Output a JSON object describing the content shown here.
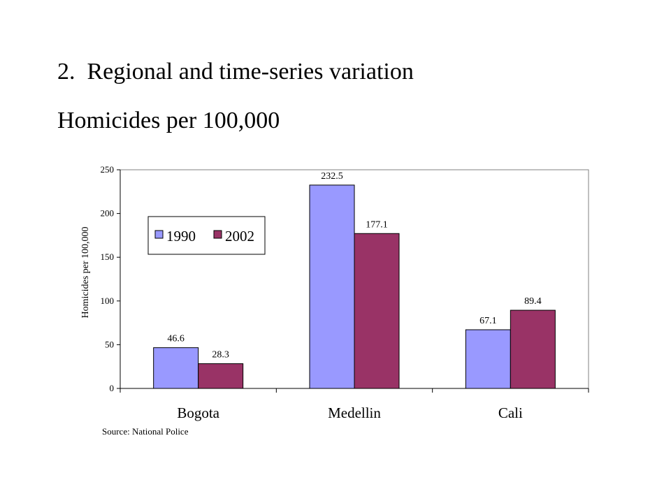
{
  "slide": {
    "title": "2.  Regional and time-series variation",
    "subtitle": "Homicides per 100,000"
  },
  "chart_data": {
    "type": "bar",
    "categories": [
      "Bogota",
      "Medellin",
      "Cali"
    ],
    "series": [
      {
        "name": "1990",
        "color": "#9999FF",
        "values": [
          46.6,
          232.5,
          67.1
        ]
      },
      {
        "name": "2002",
        "color": "#993366",
        "values": [
          28.3,
          177.1,
          89.4
        ]
      }
    ],
    "data_labels": [
      [
        "46.6",
        "232.5",
        "67.1"
      ],
      [
        "28.3",
        "177.1",
        "89.4"
      ]
    ],
    "ylabel": "Homicides per 100,000",
    "xlabel": "",
    "ylim": [
      0,
      250
    ],
    "yticks": [
      0,
      50,
      100,
      150,
      200,
      250
    ],
    "grid": false,
    "legend": "top-left inside plot",
    "source": "Source:  National Police"
  }
}
